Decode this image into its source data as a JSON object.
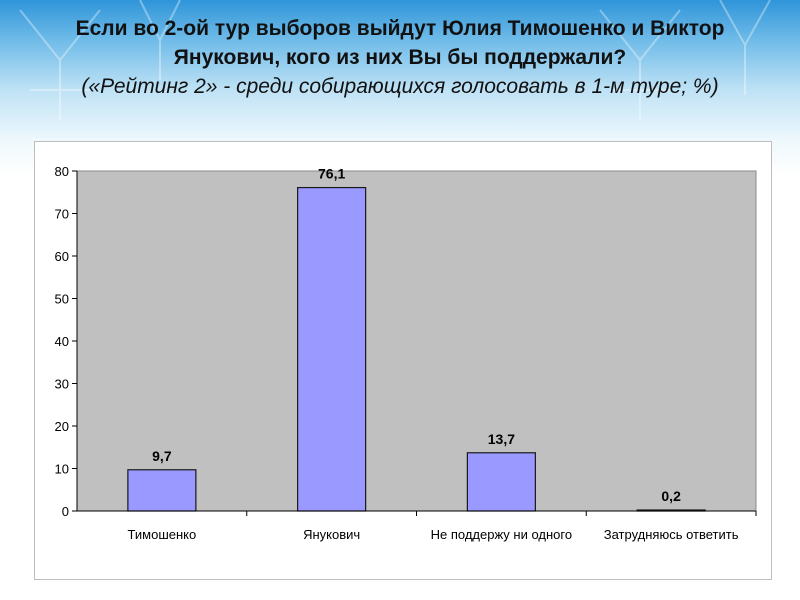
{
  "title": "Если во 2-ой тур выборов выйдут Юлия Тимошенко и Виктор Янукович, кого из них Вы бы поддержали?",
  "subtitle": "(«Рейтинг 2» - среди собирающихся голосовать в 1-м туре; %)",
  "colors": {
    "bar_fill": "#9999ff",
    "bar_stroke": "#1a1a1a",
    "plot_bg": "#c0c0c0",
    "title_text": "#111111"
  },
  "chart_data": {
    "type": "bar",
    "categories": [
      "Тимошенко",
      "Янукович",
      "Не поддержу ни одного",
      "Затрудняюсь ответить"
    ],
    "values": [
      9.7,
      76.1,
      13.7,
      0.2
    ],
    "value_labels": [
      "9,7",
      "76,1",
      "13,7",
      "0,2"
    ],
    "ylim": [
      0,
      80
    ],
    "yticks": [
      0,
      10,
      20,
      30,
      40,
      50,
      60,
      70,
      80
    ],
    "xlabel": "",
    "ylabel": "",
    "grid": false,
    "legend": "none"
  }
}
